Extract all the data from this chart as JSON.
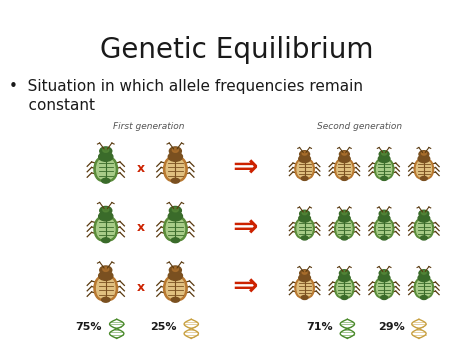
{
  "title": "Genetic Equilibrium",
  "title_fontsize": 20,
  "bullet_line1": "•  Situation in which allele frequencies remain",
  "bullet_line2": "    constant",
  "bullet_fontsize": 11,
  "first_gen_label": "First generation",
  "second_gen_label": "Second generation",
  "gen_label_fontsize": 6.5,
  "pct_labels": [
    "75%",
    "25%",
    "71%",
    "29%"
  ],
  "background_color": "#ffffff",
  "text_color": "#1a1a1a",
  "arrow_color": "#cc2200",
  "cross_color": "#cc2200",
  "green_dark": "#3a6b2a",
  "green_mid": "#5a8c3a",
  "green_light": "#a8cc88",
  "brown_dark": "#7a5020",
  "brown_mid": "#b87830",
  "brown_light": "#e0c080",
  "leg_color": "#5a3a10",
  "pct_fontsize": 8,
  "dna_green": "#4a8a2a",
  "dna_tan": "#c8a040"
}
